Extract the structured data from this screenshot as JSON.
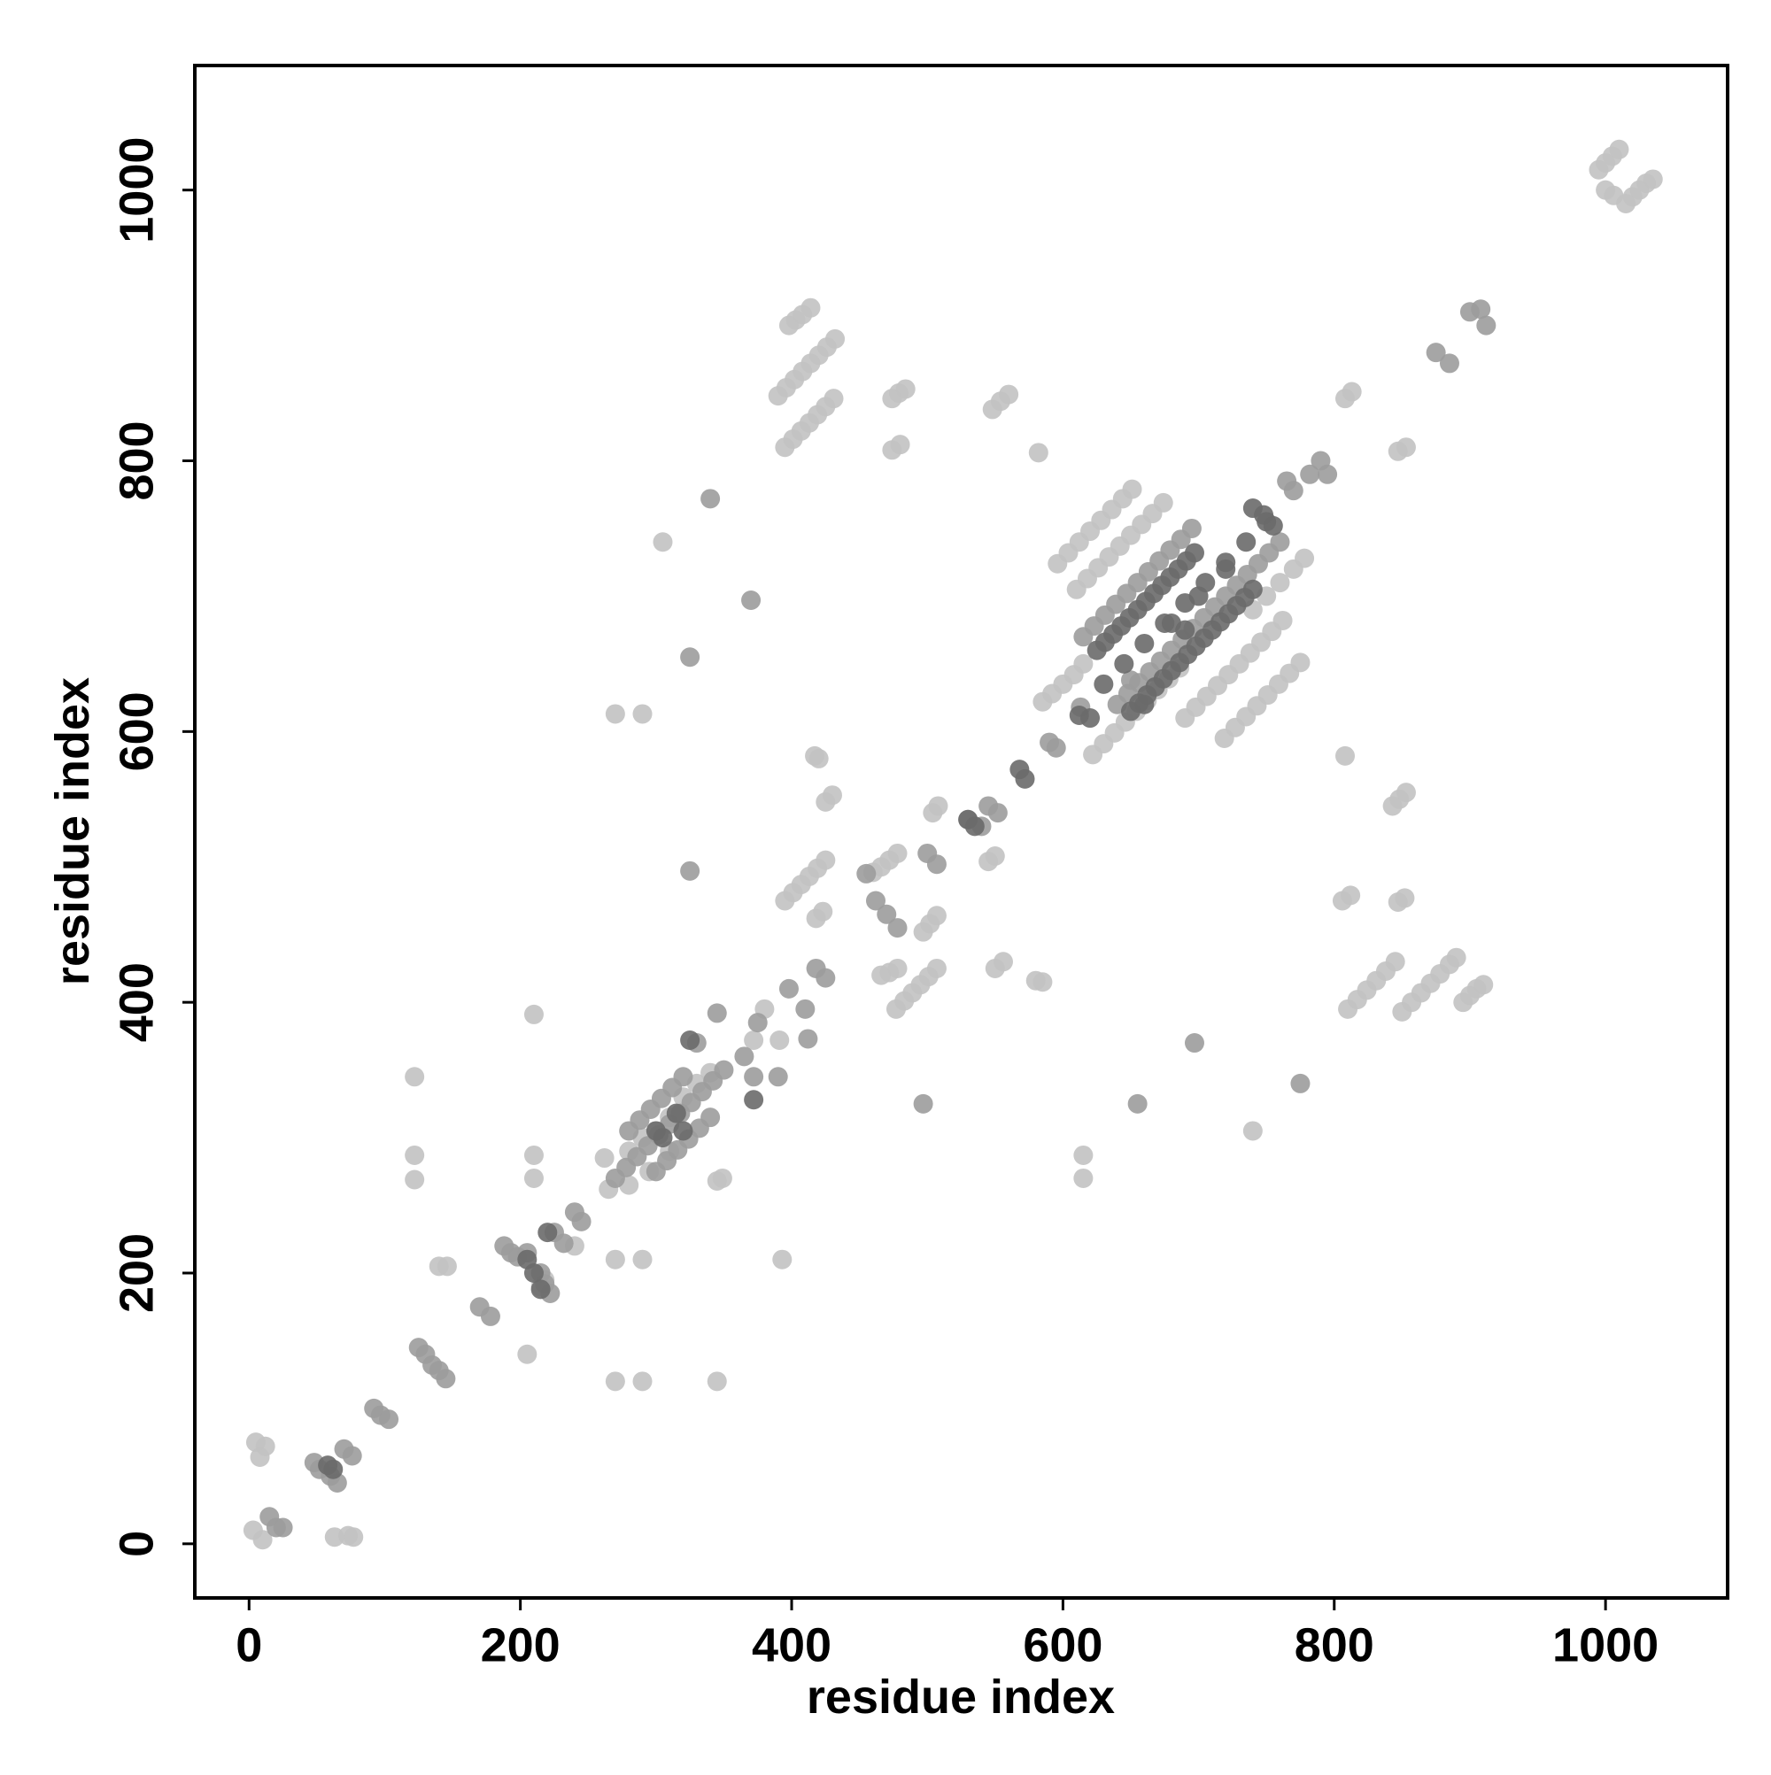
{
  "chart_data": {
    "type": "scatter",
    "x_label": "residue index",
    "y_label": "residue index",
    "xlim": [
      -40,
      1090
    ],
    "ylim": [
      -40,
      1092
    ],
    "xticks": [
      0,
      200,
      400,
      600,
      800,
      1000
    ],
    "yticks": [
      0,
      200,
      400,
      600,
      800,
      1000
    ],
    "series": [
      {
        "color": "#c2c2c2",
        "x": [
          3,
          10,
          5,
          8,
          12,
          63,
          73,
          77,
          395,
          401,
          407,
          413,
          419,
          425,
          431,
          390,
          396,
          402,
          408,
          414,
          420,
          426,
          432,
          398,
          403,
          408,
          414,
          474,
          480,
          474,
          479,
          484,
          548,
          554,
          560,
          582,
          305,
          270,
          290,
          808,
          813,
          847,
          853,
          995,
          1000,
          1005,
          1010,
          1000,
          1006,
          1015,
          1020,
          1025,
          1030,
          1035,
          808,
          806,
          812,
          847,
          852,
          810,
          817,
          824,
          831,
          838,
          845,
          850,
          857,
          864,
          871,
          878,
          885,
          890,
          895,
          900,
          905,
          910,
          843,
          848,
          853,
          417,
          420,
          425,
          430,
          395,
          401,
          407,
          413,
          419,
          425,
          418,
          423,
          460,
          466,
          472,
          478,
          466,
          472,
          478,
          477,
          483,
          489,
          495,
          501,
          507,
          497,
          502,
          507,
          504,
          508,
          545,
          550,
          550,
          556,
          580,
          585,
          122,
          122,
          122,
          210,
          210,
          210,
          270,
          290,
          345,
          270,
          290,
          393,
          140,
          146,
          205,
          615,
          615,
          740,
          345,
          349,
          372,
          391,
          380,
          596,
          604,
          612,
          620,
          628,
          636,
          644,
          651,
          610,
          618,
          626,
          634,
          642,
          650,
          658,
          666,
          674,
          622,
          630,
          638,
          646,
          654,
          662,
          670,
          678,
          686,
          690,
          698,
          706,
          714,
          722,
          730,
          738,
          746,
          754,
          762,
          719,
          727,
          735,
          743,
          751,
          759,
          767,
          775,
          740,
          750,
          760,
          770,
          778,
          585,
          592,
          600,
          608,
          615,
          262,
          280,
          290,
          300,
          310,
          320,
          330,
          340,
          265,
          280,
          295,
          310,
          215,
          218,
          240
        ],
        "values": [
          10,
          3,
          75,
          64,
          72,
          5,
          6,
          5,
          810,
          816,
          822,
          828,
          834,
          840,
          846,
          848,
          854,
          860,
          866,
          872,
          878,
          884,
          890,
          900,
          904,
          908,
          913,
          808,
          812,
          846,
          850,
          853,
          838,
          844,
          849,
          806,
          740,
          613,
          613,
          846,
          851,
          807,
          810,
          1015,
          1020,
          1025,
          1030,
          1000,
          996,
          990,
          995,
          1000,
          1005,
          1008,
          582,
          475,
          479,
          474,
          477,
          395,
          402,
          409,
          416,
          423,
          430,
          393,
          400,
          407,
          414,
          421,
          428,
          433,
          400,
          405,
          410,
          413,
          545,
          550,
          555,
          582,
          580,
          548,
          553,
          475,
          481,
          487,
          493,
          499,
          505,
          462,
          467,
          496,
          500,
          505,
          510,
          420,
          422,
          425,
          395,
          401,
          407,
          413,
          419,
          425,
          452,
          458,
          464,
          540,
          545,
          504,
          508,
          425,
          430,
          416,
          415,
          345,
          287,
          269,
          391,
          287,
          270,
          120,
          120,
          120,
          210,
          210,
          210,
          205,
          205,
          140,
          287,
          270,
          305,
          268,
          270,
          372,
          372,
          395,
          724,
          732,
          740,
          748,
          756,
          764,
          772,
          779,
          705,
          713,
          721,
          729,
          737,
          745,
          753,
          761,
          769,
          583,
          591,
          599,
          607,
          615,
          623,
          631,
          639,
          647,
          610,
          618,
          626,
          634,
          642,
          650,
          658,
          666,
          674,
          682,
          595,
          603,
          611,
          619,
          627,
          635,
          643,
          651,
          690,
          700,
          710,
          720,
          728,
          622,
          628,
          635,
          642,
          650,
          285,
          290,
          300,
          305,
          315,
          330,
          340,
          348,
          262,
          265,
          275,
          290,
          190,
          195,
          220
        ]
      },
      {
        "color": "#9c9c9c",
        "x": [
          15,
          20,
          25,
          48,
          52,
          60,
          65,
          70,
          76,
          92,
          97,
          103,
          125,
          130,
          135,
          140,
          145,
          170,
          178,
          188,
          193,
          198,
          205,
          215,
          218,
          222,
          225,
          232,
          240,
          245,
          270,
          278,
          286,
          294,
          302,
          310,
          318,
          326,
          334,
          342,
          350,
          280,
          288,
          296,
          304,
          312,
          320,
          300,
          308,
          316,
          324,
          332,
          340,
          330,
          345,
          365,
          372,
          375,
          390,
          398,
          410,
          412,
          418,
          425,
          455,
          462,
          470,
          478,
          500,
          507,
          530,
          540,
          545,
          552,
          590,
          595,
          613,
          650,
          615,
          623,
          631,
          639,
          647,
          655,
          663,
          671,
          679,
          687,
          695,
          640,
          648,
          656,
          664,
          672,
          680,
          688,
          696,
          704,
          712,
          720,
          728,
          736,
          744,
          752,
          760,
          765,
          770,
          782,
          790,
          795,
          875,
          885,
          900,
          908,
          912,
          325,
          370,
          655,
          697,
          340,
          775,
          497,
          325
        ],
        "values": [
          20,
          12,
          12,
          60,
          55,
          50,
          45,
          70,
          65,
          100,
          95,
          92,
          145,
          140,
          132,
          128,
          122,
          175,
          168,
          220,
          215,
          212,
          215,
          200,
          192,
          185,
          230,
          222,
          245,
          238,
          270,
          278,
          286,
          294,
          302,
          310,
          318,
          326,
          334,
          342,
          350,
          305,
          313,
          321,
          329,
          337,
          345,
          275,
          283,
          291,
          299,
          307,
          315,
          370,
          392,
          360,
          345,
          385,
          345,
          410,
          395,
          373,
          425,
          418,
          495,
          475,
          465,
          455,
          510,
          502,
          535,
          530,
          545,
          540,
          592,
          588,
          618,
          638,
          670,
          678,
          686,
          694,
          702,
          710,
          718,
          726,
          734,
          742,
          750,
          620,
          628,
          636,
          644,
          652,
          660,
          668,
          676,
          684,
          692,
          700,
          708,
          716,
          724,
          732,
          740,
          785,
          778,
          790,
          800,
          790,
          880,
          872,
          910,
          912,
          900,
          655,
          697,
          325,
          370,
          772,
          340,
          325,
          497
        ]
      },
      {
        "color": "#6a6a6a",
        "x": [
          58,
          62,
          205,
          210,
          215,
          220,
          300,
          305,
          315,
          320,
          325,
          372,
          530,
          535,
          568,
          572,
          612,
          620,
          660,
          680,
          690,
          700,
          720,
          625,
          631,
          637,
          643,
          649,
          655,
          661,
          667,
          673,
          679,
          685,
          691,
          697,
          650,
          656,
          662,
          668,
          674,
          680,
          686,
          692,
          698,
          704,
          710,
          716,
          722,
          728,
          734,
          740,
          630,
          645,
          660,
          675,
          690,
          705,
          720,
          735,
          750,
          740,
          748,
          755
        ],
        "values": [
          58,
          55,
          210,
          200,
          188,
          230,
          305,
          300,
          318,
          305,
          372,
          328,
          535,
          530,
          572,
          565,
          612,
          610,
          620,
          680,
          675,
          700,
          720,
          660,
          666,
          672,
          678,
          684,
          690,
          696,
          702,
          708,
          714,
          720,
          726,
          732,
          615,
          621,
          627,
          633,
          639,
          645,
          651,
          657,
          663,
          669,
          675,
          681,
          687,
          693,
          699,
          705,
          635,
          650,
          665,
          680,
          695,
          710,
          725,
          740,
          755,
          765,
          760,
          752
        ]
      }
    ]
  }
}
